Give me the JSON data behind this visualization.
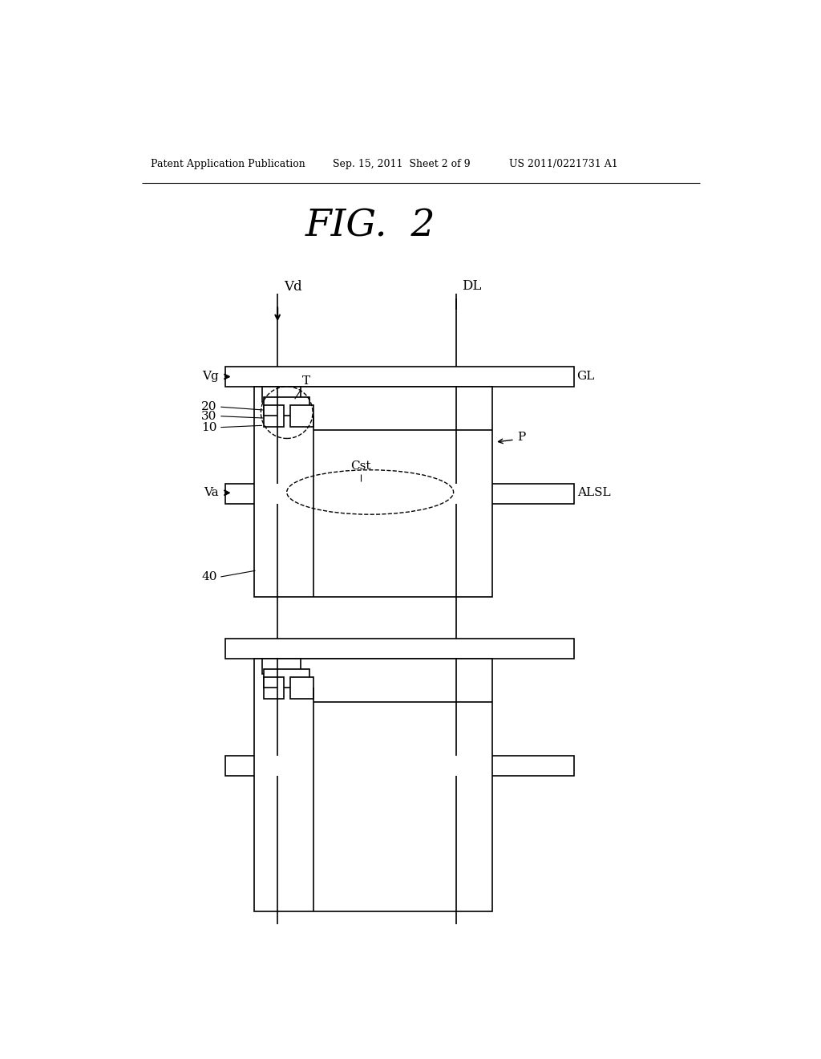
{
  "bg_color": "#ffffff",
  "title": "FIG.  2",
  "header_left": "Patent Application Publication",
  "header_center": "Sep. 15, 2011  Sheet 2 of 9",
  "header_right": "US 2011/0221731 A1",
  "fig_width": 10.24,
  "fig_height": 13.2,
  "lw_thin": 1.2,
  "lw_med": 1.8,
  "lw_thick": 2.5
}
